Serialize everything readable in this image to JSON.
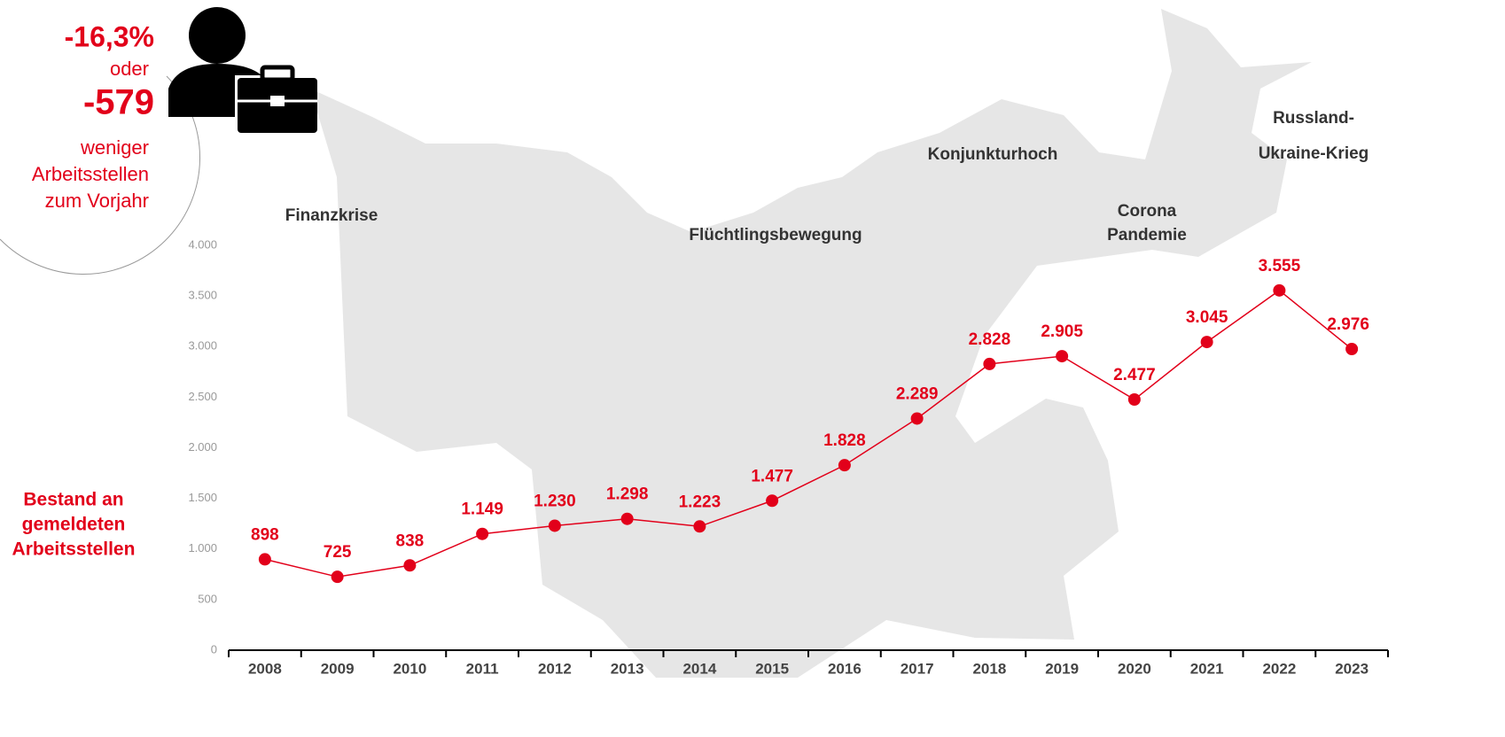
{
  "chart_data": {
    "type": "line",
    "categories": [
      "2008",
      "2009",
      "2010",
      "2011",
      "2012",
      "2013",
      "2014",
      "2015",
      "2016",
      "2017",
      "2018",
      "2019",
      "2020",
      "2021",
      "2022",
      "2023"
    ],
    "series": [
      {
        "name": "Bestand an gemeldeten Arbeitsstellen",
        "color": "#e2001a",
        "values": [
          898,
          725,
          838,
          1149,
          1230,
          1298,
          1223,
          1477,
          1828,
          2289,
          2828,
          2905,
          2477,
          3045,
          3555,
          2976
        ],
        "value_labels": [
          "898",
          "725",
          "838",
          "1.149",
          "1.230",
          "1.298",
          "1.223",
          "1.477",
          "1.828",
          "2.289",
          "2.828",
          "2.905",
          "2.477",
          "3.045",
          "3.555",
          "2.976"
        ]
      }
    ],
    "ylabel_lines": [
      "Bestand an",
      "gemeldeten",
      "Arbeitsstellen"
    ],
    "ylim": [
      0,
      4000
    ],
    "yticks": [
      0,
      500,
      {
        "value": 1000,
        "label": "1.000"
      },
      {
        "value": 1500,
        "label": "1.500"
      },
      {
        "value": 2000,
        "label": "2.000"
      },
      {
        "value": 2500,
        "label": "2.500"
      },
      {
        "value": 3000,
        "label": "3.000"
      },
      {
        "value": 3500,
        "label": "3.500"
      },
      {
        "value": 4000,
        "label": "4.000"
      }
    ],
    "grid": false,
    "annotations": [
      {
        "lines": [
          "Finanzkrise"
        ]
      },
      {
        "lines": [
          "Flüchtlingsbewegung"
        ]
      },
      {
        "lines": [
          "Konjunkturhoch"
        ]
      },
      {
        "lines": [
          "Corona",
          "Pandemie"
        ]
      },
      {
        "lines": [
          "Russland-",
          "Ukraine-Krieg"
        ]
      }
    ],
    "callout": {
      "change_percent": "-16,3%",
      "connector": "oder",
      "change_absolute": "-579",
      "lines": [
        "weniger",
        "Arbeitsstellen",
        "zum Vorjahr"
      ]
    }
  }
}
